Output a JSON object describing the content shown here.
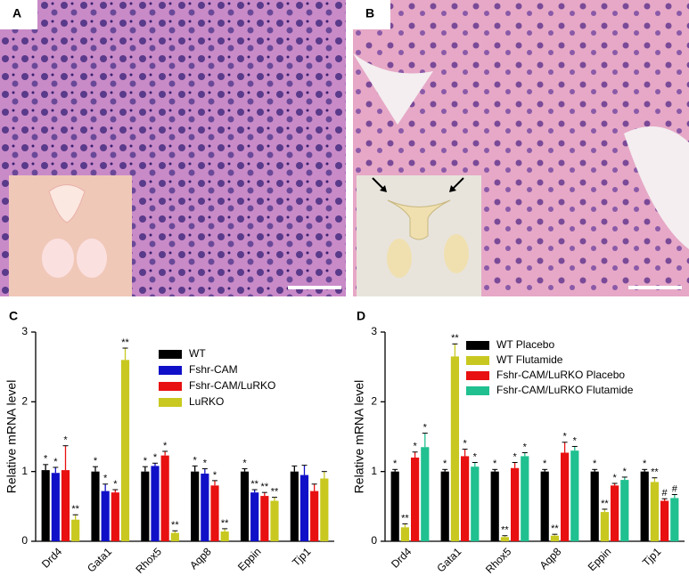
{
  "image_panels": [
    {
      "label": "A"
    },
    {
      "label": "B"
    }
  ],
  "chart_data": [
    {
      "type": "bar",
      "label": "C",
      "y_label": "Relative mRNA level",
      "categories": [
        "Drd4",
        "Gata1",
        "Rhox5",
        "Aqp8",
        "Eppin",
        "Tjp1"
      ],
      "ylim": [
        0,
        3
      ],
      "yticks": [
        0,
        1,
        2,
        3
      ],
      "series": [
        {
          "name": "WT",
          "color": "#000000",
          "values": [
            1.02,
            1.0,
            1.0,
            1.0,
            1.0,
            1.0
          ],
          "errors": [
            0.08,
            0.07,
            0.07,
            0.08,
            0.04,
            0.08
          ],
          "annotations": [
            "*",
            "*",
            "*",
            "*",
            "*",
            null
          ]
        },
        {
          "name": "Fshr-CAM",
          "color": "#1010c8",
          "values": [
            0.98,
            0.72,
            1.08,
            0.97,
            0.7,
            0.95
          ],
          "errors": [
            0.08,
            0.1,
            0.04,
            0.07,
            0.04,
            0.14
          ],
          "annotations": [
            "*",
            "*",
            "*",
            "*",
            "**",
            null
          ]
        },
        {
          "name": "Fshr-CAM/LuRKO",
          "color": "#e81010",
          "values": [
            1.02,
            0.7,
            1.23,
            0.8,
            0.65,
            0.72
          ],
          "errors": [
            0.35,
            0.04,
            0.06,
            0.07,
            0.05,
            0.1
          ],
          "annotations": [
            "*",
            "*",
            "*",
            "*",
            "**",
            null
          ]
        },
        {
          "name": "LuRKO",
          "color": "#c8c820",
          "values": [
            0.31,
            2.6,
            0.12,
            0.14,
            0.58,
            0.9
          ],
          "errors": [
            0.07,
            0.17,
            0.03,
            0.04,
            0.05,
            0.1
          ],
          "annotations": [
            "**",
            "**",
            "**",
            "**",
            "**",
            null
          ]
        }
      ]
    },
    {
      "type": "bar",
      "label": "D",
      "y_label": "Relative mRNA level",
      "categories": [
        "Drd4",
        "Gata1",
        "Rhox5",
        "Aqp8",
        "Eppin",
        "Tjp1"
      ],
      "ylim": [
        0,
        3
      ],
      "yticks": [
        0,
        1,
        2,
        3
      ],
      "series": [
        {
          "name": "WT Placebo",
          "color": "#000000",
          "values": [
            1.0,
            1.0,
            1.0,
            1.0,
            1.0,
            1.0
          ],
          "errors": [
            0.03,
            0.03,
            0.03,
            0.03,
            0.03,
            0.03
          ],
          "annotations": [
            "*",
            "*",
            "*",
            "*",
            "*",
            "*"
          ]
        },
        {
          "name": "WT Flutamide",
          "color": "#c8c820",
          "values": [
            0.2,
            2.65,
            0.06,
            0.08,
            0.42,
            0.85
          ],
          "errors": [
            0.05,
            0.18,
            0.02,
            0.02,
            0.04,
            0.06
          ],
          "annotations": [
            "**",
            "**",
            "**",
            "**",
            "**",
            "**"
          ]
        },
        {
          "name": "Fshr-CAM/LuRKO Placebo",
          "color": "#e81010",
          "values": [
            1.2,
            1.22,
            1.05,
            1.27,
            0.8,
            0.58
          ],
          "errors": [
            0.08,
            0.1,
            0.08,
            0.15,
            0.03,
            0.03
          ],
          "annotations": [
            "*",
            "*",
            "*",
            "*",
            "*",
            "#"
          ]
        },
        {
          "name": "Fshr-CAM/LuRKO Flutamide",
          "color": "#20c090",
          "values": [
            1.35,
            1.07,
            1.22,
            1.3,
            0.88,
            0.62
          ],
          "errors": [
            0.2,
            0.06,
            0.05,
            0.06,
            0.04,
            0.05
          ],
          "annotations": [
            "*",
            "*",
            "*",
            "*",
            "*",
            "#"
          ]
        }
      ]
    }
  ]
}
